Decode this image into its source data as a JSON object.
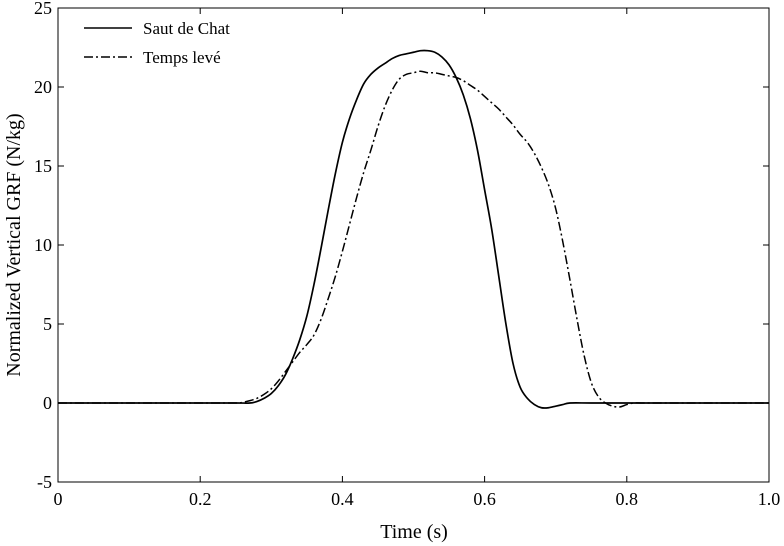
{
  "chart_data": {
    "type": "line",
    "title": "",
    "xlabel": "Time (s)",
    "ylabel": "Normalized Vertical GRF (N/kg)",
    "xlim": [
      0,
      1.0
    ],
    "ylim": [
      -5,
      25
    ],
    "xticks": [
      0,
      0.2,
      0.4,
      0.6,
      0.8,
      1.0
    ],
    "xtick_labels": [
      "0",
      "0.2",
      "0.4",
      "0.6",
      "0.8",
      "1.0"
    ],
    "yticks": [
      -5,
      0,
      5,
      10,
      15,
      20,
      25
    ],
    "ytick_labels": [
      "-5",
      "0",
      "5",
      "10",
      "15",
      "20",
      "25"
    ],
    "grid": false,
    "legend_position": "top-left",
    "series": [
      {
        "name": "Saut de Chat",
        "line_style": "solid",
        "color": "#000000",
        "x": [
          0,
          0.1,
          0.2,
          0.25,
          0.27,
          0.28,
          0.29,
          0.3,
          0.31,
          0.32,
          0.33,
          0.34,
          0.35,
          0.36,
          0.37,
          0.38,
          0.39,
          0.4,
          0.41,
          0.42,
          0.43,
          0.44,
          0.45,
          0.46,
          0.47,
          0.48,
          0.49,
          0.5,
          0.51,
          0.52,
          0.53,
          0.54,
          0.55,
          0.56,
          0.57,
          0.58,
          0.59,
          0.6,
          0.61,
          0.62,
          0.63,
          0.64,
          0.65,
          0.66,
          0.67,
          0.68,
          0.69,
          0.7,
          0.71,
          0.72,
          0.75,
          0.8,
          0.9,
          1.0
        ],
        "y": [
          0,
          0,
          0,
          0,
          0,
          0.1,
          0.3,
          0.6,
          1.1,
          1.8,
          2.8,
          4.0,
          5.5,
          7.5,
          9.8,
          12.2,
          14.5,
          16.5,
          18.0,
          19.2,
          20.2,
          20.8,
          21.2,
          21.5,
          21.8,
          22.0,
          22.1,
          22.2,
          22.3,
          22.3,
          22.2,
          21.9,
          21.4,
          20.6,
          19.5,
          18.0,
          16.0,
          13.5,
          11.0,
          8.0,
          5.0,
          2.5,
          1.0,
          0.3,
          -0.1,
          -0.3,
          -0.3,
          -0.2,
          -0.1,
          0,
          0,
          0,
          0,
          0
        ]
      },
      {
        "name": "Temps levé",
        "line_style": "dashdot",
        "color": "#000000",
        "x": [
          0,
          0.1,
          0.2,
          0.25,
          0.26,
          0.27,
          0.28,
          0.29,
          0.3,
          0.31,
          0.32,
          0.33,
          0.34,
          0.35,
          0.36,
          0.37,
          0.38,
          0.39,
          0.4,
          0.41,
          0.42,
          0.43,
          0.44,
          0.45,
          0.46,
          0.47,
          0.48,
          0.49,
          0.5,
          0.51,
          0.52,
          0.53,
          0.54,
          0.55,
          0.56,
          0.57,
          0.58,
          0.59,
          0.6,
          0.61,
          0.62,
          0.63,
          0.64,
          0.65,
          0.66,
          0.67,
          0.68,
          0.69,
          0.7,
          0.71,
          0.72,
          0.73,
          0.74,
          0.75,
          0.76,
          0.77,
          0.78,
          0.79,
          0.8,
          0.81,
          0.82,
          0.85,
          0.9,
          1.0
        ],
        "y": [
          0,
          0,
          0,
          0,
          0.05,
          0.15,
          0.3,
          0.55,
          0.9,
          1.4,
          2.0,
          2.6,
          3.2,
          3.7,
          4.3,
          5.3,
          6.6,
          8.0,
          9.6,
          11.3,
          13.0,
          14.6,
          16.0,
          17.5,
          18.8,
          19.8,
          20.5,
          20.8,
          20.9,
          21.0,
          20.9,
          20.9,
          20.8,
          20.7,
          20.6,
          20.4,
          20.1,
          19.8,
          19.4,
          19.0,
          18.6,
          18.1,
          17.6,
          17.0,
          16.5,
          15.8,
          14.9,
          13.8,
          12.3,
          10.2,
          7.8,
          5.3,
          3.0,
          1.3,
          0.4,
          0,
          -0.2,
          -0.25,
          -0.1,
          0,
          0,
          0,
          0,
          0
        ]
      }
    ]
  }
}
